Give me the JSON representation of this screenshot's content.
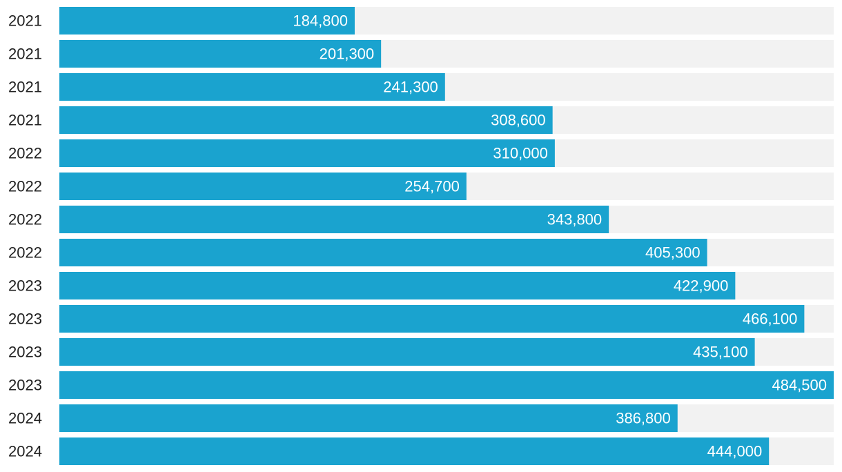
{
  "chart_data": {
    "type": "bar",
    "orientation": "horizontal",
    "categories": [
      "2021",
      "2021",
      "2021",
      "2021",
      "2022",
      "2022",
      "2022",
      "2022",
      "2023",
      "2023",
      "2023",
      "2023",
      "2024",
      "2024"
    ],
    "values": [
      184800,
      201300,
      241300,
      308600,
      310000,
      254700,
      343800,
      405300,
      422900,
      466100,
      435100,
      484500,
      386800,
      444000
    ],
    "value_labels": [
      "184,800",
      "201,300",
      "241,300",
      "308,600",
      "310,000",
      "254,700",
      "343,800",
      "405,300",
      "422,900",
      "466,100",
      "435,100",
      "484,500",
      "386,800",
      "444,000"
    ],
    "xlim": [
      0,
      484500
    ],
    "grid": false,
    "legend": "none",
    "colors": {
      "bar": "#1aa3cf",
      "track": "#f2f2f2",
      "category_text": "#222222",
      "value_text": "#ffffff"
    }
  }
}
